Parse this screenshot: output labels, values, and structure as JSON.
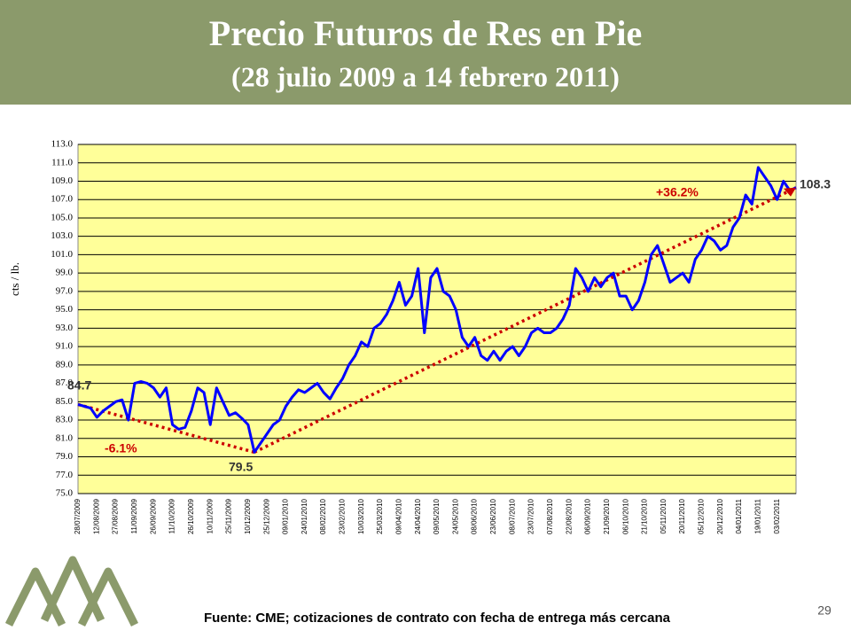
{
  "title": "Precio Futuros de Res en Pie",
  "subtitle": "(28 julio 2009 a 14 febrero 2011)",
  "source": "Fuente: CME; cotizaciones de contrato con fecha de entrega más cercana",
  "page_number": "29",
  "chart_data": {
    "type": "line",
    "y_label": "cts / lb.",
    "color": "#0000ff",
    "grid": true,
    "ylim": [
      75,
      113
    ],
    "yticks": [
      {
        "value": 75,
        "label": "75.0"
      },
      {
        "value": 77,
        "label": "77.0"
      },
      {
        "value": 79,
        "label": "79.0"
      },
      {
        "value": 81,
        "label": "81.0"
      },
      {
        "value": 83,
        "label": "83.0"
      },
      {
        "value": 85,
        "label": "85.0"
      },
      {
        "value": 87,
        "label": "87.0"
      },
      {
        "value": 89,
        "label": "89.0"
      },
      {
        "value": 91,
        "label": "91.0"
      },
      {
        "value": 93,
        "label": "93.0"
      },
      {
        "value": 95,
        "label": "95.0"
      },
      {
        "value": 97,
        "label": "97.0"
      },
      {
        "value": 99,
        "label": "99.0"
      },
      {
        "value": 101,
        "label": "101.0"
      },
      {
        "value": 103,
        "label": "103.0"
      },
      {
        "value": 105,
        "label": "105.0"
      },
      {
        "value": 107,
        "label": "107.0"
      },
      {
        "value": 109,
        "label": "109.0"
      },
      {
        "value": 111,
        "label": "111.0"
      },
      {
        "value": 113,
        "label": "113.0"
      }
    ],
    "categories": [
      "28/07/2009",
      null,
      null,
      "12/08/2009",
      null,
      null,
      "27/08/2009",
      null,
      null,
      "11/09/2009",
      null,
      null,
      "26/09/2009",
      null,
      null,
      "11/10/2009",
      null,
      null,
      "26/10/2009",
      null,
      null,
      "10/11/2009",
      null,
      null,
      "25/11/2009",
      null,
      null,
      "10/12/2009",
      null,
      null,
      "25/12/2009",
      null,
      null,
      "09/01/2010",
      null,
      null,
      "24/01/2010",
      null,
      null,
      "08/02/2010",
      null,
      null,
      "23/02/2010",
      null,
      null,
      "10/03/2010",
      null,
      null,
      "25/03/2010",
      null,
      null,
      "09/04/2010",
      null,
      null,
      "24/04/2010",
      null,
      null,
      "09/05/2010",
      null,
      null,
      "24/05/2010",
      null,
      null,
      "08/06/2010",
      null,
      null,
      "23/06/2010",
      null,
      null,
      "08/07/2010",
      null,
      null,
      "23/07/2010",
      null,
      null,
      "07/08/2010",
      null,
      null,
      "22/08/2010",
      null,
      null,
      "06/09/2010",
      null,
      null,
      "21/09/2010",
      null,
      null,
      "06/10/2010",
      null,
      null,
      "21/10/2010",
      null,
      null,
      "05/11/2010",
      null,
      null,
      "20/11/2010",
      null,
      null,
      "05/12/2010",
      null,
      null,
      "20/12/2010",
      null,
      null,
      "04/01/2011",
      null,
      null,
      "19/01/2011",
      null,
      null,
      "03/02/2011",
      null,
      null,
      null
    ],
    "values": [
      84.7,
      84.5,
      84.3,
      83.3,
      84.0,
      84.5,
      85.0,
      85.2,
      83.0,
      87.0,
      87.2,
      87.0,
      86.5,
      85.5,
      86.5,
      82.5,
      82.0,
      82.2,
      84.0,
      86.5,
      86.0,
      82.5,
      86.5,
      85.0,
      83.5,
      83.8,
      83.2,
      82.5,
      79.5,
      80.5,
      81.5,
      82.5,
      83.0,
      84.5,
      85.5,
      86.3,
      86.0,
      86.5,
      87.0,
      86.0,
      85.3,
      86.5,
      87.5,
      89.0,
      90.0,
      91.5,
      91.0,
      93.0,
      93.5,
      94.5,
      96.0,
      98.0,
      95.5,
      96.5,
      99.5,
      92.5,
      98.5,
      99.5,
      97.0,
      96.5,
      95.0,
      92.0,
      91.0,
      92.0,
      90.0,
      89.5,
      90.5,
      89.5,
      90.5,
      91.0,
      90.0,
      91.0,
      92.5,
      93.0,
      92.5,
      92.5,
      93.0,
      94.0,
      95.5,
      99.5,
      98.5,
      97.0,
      98.5,
      97.5,
      98.5,
      99.0,
      96.5,
      96.5,
      95.0,
      96.0,
      98.0,
      101.0,
      102.0,
      100.0,
      98.0,
      98.5,
      99.0,
      98.0,
      100.5,
      101.5,
      103.0,
      102.5,
      101.5,
      102.0,
      104.0,
      105.0,
      107.5,
      106.5,
      110.5,
      109.5,
      108.5,
      107.0,
      109.0,
      108.0,
      108.3
    ],
    "annotations": [
      "84.7",
      "-6.1%",
      "79.5",
      "+36.2%",
      "108.3"
    ]
  }
}
